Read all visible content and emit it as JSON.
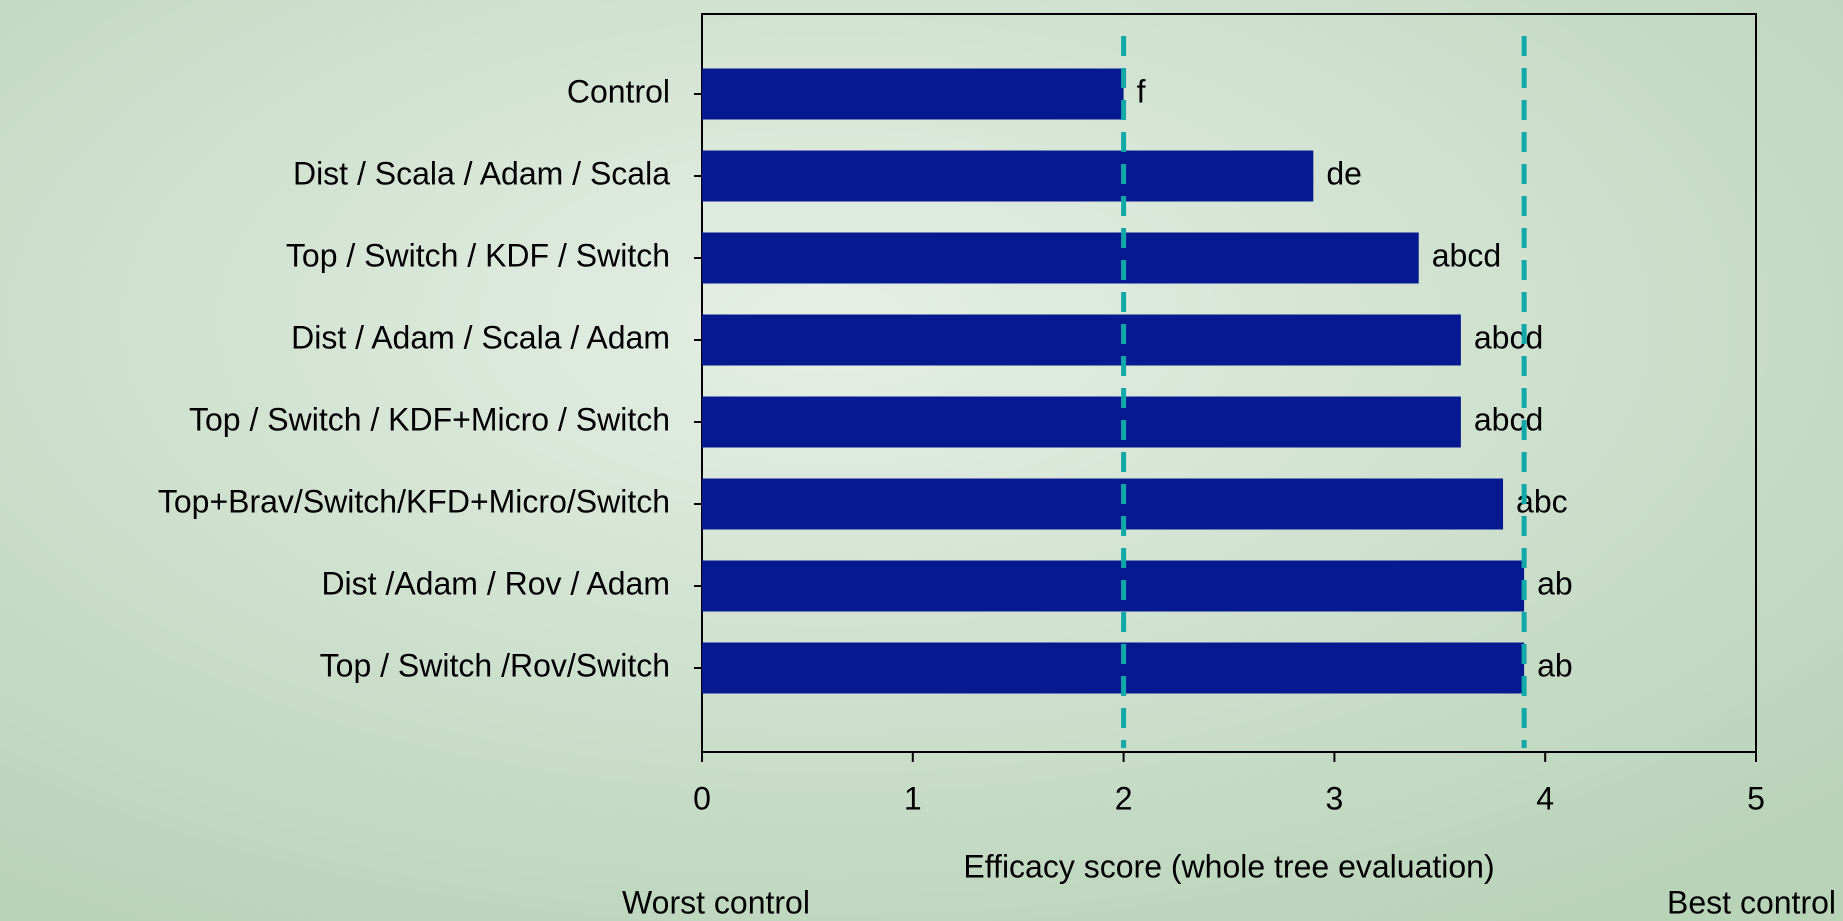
{
  "chart_data": {
    "type": "bar",
    "orientation": "horizontal",
    "categories": [
      "Control",
      "Dist / Scala / Adam / Scala",
      "Top / Switch / KDF / Switch",
      "Dist / Adam / Scala / Adam",
      "Top / Switch / KDF+Micro / Switch",
      "Top+Brav/Switch/KFD+Micro/Switch",
      "Dist /Adam / Rov / Adam",
      "Top / Switch /Rov/Switch"
    ],
    "values": [
      2.0,
      2.9,
      3.4,
      3.6,
      3.6,
      3.8,
      3.9,
      3.9
    ],
    "annotations": [
      "f",
      "de",
      "abcd",
      "abcd",
      "abcd",
      "abc",
      "ab",
      "ab"
    ],
    "color": "#061991",
    "xlim": [
      0,
      5
    ],
    "xticks": [
      0,
      1,
      2,
      3,
      4,
      5
    ],
    "xlabel": "Efficacy score (whole tree evaluation)",
    "reference_lines": [
      2,
      3.9
    ],
    "reference_color": "#13a8a8",
    "left_note": "Worst control",
    "right_note": "Best control"
  }
}
